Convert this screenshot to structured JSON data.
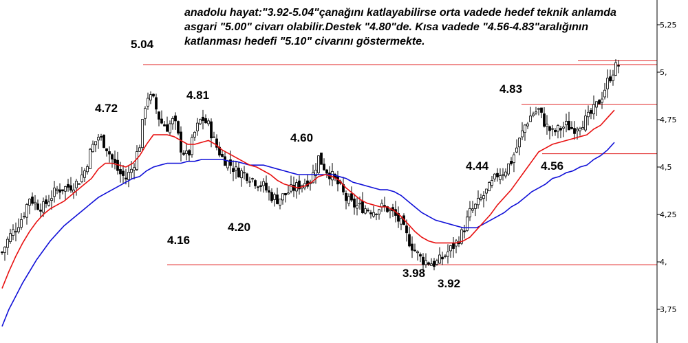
{
  "chart_data": {
    "type": "candlestick",
    "title": "",
    "commentary": "anadolu hayat:\"3.92-5.04\"çanağını katlayabilirse orta vadede hedef teknik anlamda asgari \"5.00\" civarı olabilir.Destek \"4.80\"de. Kısa vadede \"4.56-4.83\"aralığının katlanması hedefi \"5.10\" civarını göstermekte.",
    "y_axis": {
      "position": "right",
      "range": [
        3.66,
        5.45
      ],
      "ticks": [
        3.75,
        4.0,
        4.25,
        4.5,
        4.75,
        5.0,
        5.25
      ],
      "tick_labels": [
        "3,75",
        "4,",
        "4,25",
        "4,5",
        "4,75",
        "5,",
        "5,25"
      ]
    },
    "grid": false,
    "annotations": [
      {
        "text": "5.04",
        "value": 5.04
      },
      {
        "text": "4.72",
        "value": 4.72
      },
      {
        "text": "4.81",
        "value": 4.81
      },
      {
        "text": "4.16",
        "value": 4.16
      },
      {
        "text": "4.20",
        "value": 4.2
      },
      {
        "text": "4.60",
        "value": 4.6
      },
      {
        "text": "4.44",
        "value": 4.44
      },
      {
        "text": "3.98",
        "value": 3.98
      },
      {
        "text": "3.92",
        "value": 3.92
      },
      {
        "text": "4.83",
        "value": 4.83
      },
      {
        "text": "4.56",
        "value": 4.56
      }
    ],
    "horizontal_levels": [
      {
        "value": 5.04,
        "color": "#e02020"
      },
      {
        "value": 5.06,
        "color": "#e02020"
      },
      {
        "value": 4.83,
        "color": "#e02020"
      },
      {
        "value": 4.57,
        "color": "#e02020"
      },
      {
        "value": 3.985,
        "color": "#e02020"
      }
    ],
    "moving_average_short_color": "#e81010",
    "moving_average_long_color": "#1010d8",
    "candle_up_color": "#ffffff",
    "candle_down_color": "#000000",
    "close_path": [
      [
        0,
        4.05
      ],
      [
        5,
        4.13
      ],
      [
        10,
        4.18
      ],
      [
        15,
        4.24
      ],
      [
        20,
        4.34
      ],
      [
        25,
        4.3
      ],
      [
        30,
        4.29
      ],
      [
        35,
        4.34
      ],
      [
        40,
        4.38
      ],
      [
        45,
        4.39
      ],
      [
        50,
        4.4
      ],
      [
        55,
        4.42
      ],
      [
        60,
        4.48
      ],
      [
        65,
        4.6
      ],
      [
        70,
        4.66
      ],
      [
        75,
        4.62
      ],
      [
        80,
        4.54
      ],
      [
        85,
        4.47
      ],
      [
        90,
        4.44
      ],
      [
        95,
        4.5
      ],
      [
        100,
        4.62
      ],
      [
        105,
        4.88
      ],
      [
        110,
        4.85
      ],
      [
        115,
        4.74
      ],
      [
        120,
        4.71
      ],
      [
        125,
        4.75
      ],
      [
        130,
        4.6
      ],
      [
        135,
        4.55
      ],
      [
        140,
        4.68
      ],
      [
        145,
        4.76
      ],
      [
        150,
        4.72
      ],
      [
        155,
        4.62
      ],
      [
        160,
        4.55
      ],
      [
        165,
        4.52
      ],
      [
        170,
        4.48
      ],
      [
        175,
        4.47
      ],
      [
        180,
        4.45
      ],
      [
        185,
        4.42
      ],
      [
        190,
        4.4
      ],
      [
        195,
        4.35
      ],
      [
        200,
        4.33
      ],
      [
        205,
        4.35
      ],
      [
        210,
        4.38
      ],
      [
        215,
        4.4
      ],
      [
        220,
        4.42
      ],
      [
        225,
        4.44
      ],
      [
        230,
        4.55
      ],
      [
        235,
        4.49
      ],
      [
        240,
        4.45
      ],
      [
        245,
        4.4
      ],
      [
        250,
        4.33
      ],
      [
        255,
        4.3
      ],
      [
        260,
        4.29
      ],
      [
        265,
        4.28
      ],
      [
        270,
        4.27
      ],
      [
        275,
        4.29
      ],
      [
        280,
        4.28
      ],
      [
        285,
        4.25
      ],
      [
        290,
        4.2
      ],
      [
        295,
        4.12
      ],
      [
        300,
        4.06
      ],
      [
        305,
        4.01
      ],
      [
        310,
        4.0
      ],
      [
        315,
        3.99
      ],
      [
        320,
        4.02
      ],
      [
        325,
        4.06
      ],
      [
        330,
        4.1
      ],
      [
        335,
        4.16
      ],
      [
        340,
        4.26
      ],
      [
        345,
        4.3
      ],
      [
        350,
        4.35
      ],
      [
        355,
        4.4
      ],
      [
        360,
        4.46
      ],
      [
        365,
        4.48
      ],
      [
        370,
        4.53
      ],
      [
        375,
        4.62
      ],
      [
        380,
        4.72
      ],
      [
        385,
        4.78
      ],
      [
        390,
        4.8
      ],
      [
        395,
        4.72
      ],
      [
        400,
        4.68
      ],
      [
        405,
        4.7
      ],
      [
        410,
        4.72
      ],
      [
        415,
        4.7
      ],
      [
        420,
        4.73
      ],
      [
        425,
        4.75
      ],
      [
        430,
        4.8
      ],
      [
        435,
        4.86
      ],
      [
        440,
        4.95
      ],
      [
        445,
        5.02
      ],
      [
        448,
        5.04
      ]
    ],
    "short_ma_path": [
      [
        0,
        3.86
      ],
      [
        5,
        3.95
      ],
      [
        10,
        4.03
      ],
      [
        15,
        4.1
      ],
      [
        20,
        4.16
      ],
      [
        25,
        4.21
      ],
      [
        30,
        4.25
      ],
      [
        35,
        4.28
      ],
      [
        40,
        4.3
      ],
      [
        45,
        4.32
      ],
      [
        50,
        4.35
      ],
      [
        55,
        4.38
      ],
      [
        60,
        4.41
      ],
      [
        65,
        4.44
      ],
      [
        70,
        4.49
      ],
      [
        75,
        4.52
      ],
      [
        80,
        4.52
      ],
      [
        85,
        4.51
      ],
      [
        90,
        4.5
      ],
      [
        95,
        4.52
      ],
      [
        100,
        4.56
      ],
      [
        105,
        4.62
      ],
      [
        110,
        4.67
      ],
      [
        115,
        4.67
      ],
      [
        120,
        4.67
      ],
      [
        125,
        4.66
      ],
      [
        130,
        4.64
      ],
      [
        135,
        4.62
      ],
      [
        140,
        4.62
      ],
      [
        145,
        4.63
      ],
      [
        150,
        4.64
      ],
      [
        155,
        4.62
      ],
      [
        160,
        4.59
      ],
      [
        165,
        4.57
      ],
      [
        170,
        4.55
      ],
      [
        175,
        4.53
      ],
      [
        180,
        4.51
      ],
      [
        185,
        4.5
      ],
      [
        190,
        4.48
      ],
      [
        195,
        4.46
      ],
      [
        200,
        4.43
      ],
      [
        205,
        4.41
      ],
      [
        210,
        4.4
      ],
      [
        215,
        4.39
      ],
      [
        220,
        4.4
      ],
      [
        225,
        4.42
      ],
      [
        230,
        4.45
      ],
      [
        235,
        4.46
      ],
      [
        240,
        4.45
      ],
      [
        245,
        4.43
      ],
      [
        250,
        4.39
      ],
      [
        255,
        4.36
      ],
      [
        260,
        4.33
      ],
      [
        265,
        4.31
      ],
      [
        270,
        4.3
      ],
      [
        275,
        4.29
      ],
      [
        280,
        4.29
      ],
      [
        285,
        4.27
      ],
      [
        290,
        4.24
      ],
      [
        295,
        4.2
      ],
      [
        300,
        4.16
      ],
      [
        305,
        4.13
      ],
      [
        310,
        4.11
      ],
      [
        315,
        4.1
      ],
      [
        320,
        4.1
      ],
      [
        325,
        4.1
      ],
      [
        330,
        4.1
      ],
      [
        335,
        4.11
      ],
      [
        340,
        4.13
      ],
      [
        345,
        4.17
      ],
      [
        350,
        4.21
      ],
      [
        355,
        4.25
      ],
      [
        360,
        4.3
      ],
      [
        365,
        4.34
      ],
      [
        370,
        4.38
      ],
      [
        375,
        4.43
      ],
      [
        380,
        4.48
      ],
      [
        385,
        4.53
      ],
      [
        390,
        4.58
      ],
      [
        395,
        4.6
      ],
      [
        400,
        4.62
      ],
      [
        405,
        4.63
      ],
      [
        410,
        4.64
      ],
      [
        415,
        4.65
      ],
      [
        420,
        4.66
      ],
      [
        425,
        4.67
      ],
      [
        430,
        4.7
      ],
      [
        435,
        4.72
      ],
      [
        440,
        4.76
      ],
      [
        445,
        4.8
      ]
    ],
    "long_ma_path": [
      [
        0,
        3.66
      ],
      [
        5,
        3.75
      ],
      [
        10,
        3.82
      ],
      [
        15,
        3.89
      ],
      [
        20,
        3.95
      ],
      [
        25,
        4.01
      ],
      [
        30,
        4.06
      ],
      [
        35,
        4.11
      ],
      [
        40,
        4.15
      ],
      [
        45,
        4.19
      ],
      [
        50,
        4.22
      ],
      [
        55,
        4.25
      ],
      [
        60,
        4.28
      ],
      [
        65,
        4.31
      ],
      [
        70,
        4.34
      ],
      [
        75,
        4.36
      ],
      [
        80,
        4.38
      ],
      [
        85,
        4.4
      ],
      [
        90,
        4.42
      ],
      [
        95,
        4.44
      ],
      [
        100,
        4.45
      ],
      [
        105,
        4.48
      ],
      [
        110,
        4.5
      ],
      [
        115,
        4.51
      ],
      [
        120,
        4.52
      ],
      [
        125,
        4.52
      ],
      [
        130,
        4.52
      ],
      [
        135,
        4.53
      ],
      [
        140,
        4.53
      ],
      [
        145,
        4.54
      ],
      [
        150,
        4.54
      ],
      [
        155,
        4.54
      ],
      [
        160,
        4.54
      ],
      [
        165,
        4.53
      ],
      [
        170,
        4.53
      ],
      [
        175,
        4.52
      ],
      [
        180,
        4.51
      ],
      [
        185,
        4.51
      ],
      [
        190,
        4.51
      ],
      [
        195,
        4.5
      ],
      [
        200,
        4.49
      ],
      [
        205,
        4.48
      ],
      [
        210,
        4.47
      ],
      [
        215,
        4.46
      ],
      [
        220,
        4.46
      ],
      [
        225,
        4.46
      ],
      [
        230,
        4.46
      ],
      [
        235,
        4.46
      ],
      [
        240,
        4.46
      ],
      [
        245,
        4.45
      ],
      [
        250,
        4.44
      ],
      [
        255,
        4.42
      ],
      [
        260,
        4.41
      ],
      [
        265,
        4.4
      ],
      [
        270,
        4.39
      ],
      [
        275,
        4.38
      ],
      [
        280,
        4.38
      ],
      [
        285,
        4.37
      ],
      [
        290,
        4.35
      ],
      [
        295,
        4.32
      ],
      [
        300,
        4.29
      ],
      [
        305,
        4.26
      ],
      [
        310,
        4.24
      ],
      [
        315,
        4.22
      ],
      [
        320,
        4.21
      ],
      [
        325,
        4.2
      ],
      [
        330,
        4.19
      ],
      [
        335,
        4.18
      ],
      [
        340,
        4.18
      ],
      [
        345,
        4.18
      ],
      [
        350,
        4.2
      ],
      [
        355,
        4.22
      ],
      [
        360,
        4.24
      ],
      [
        365,
        4.26
      ],
      [
        370,
        4.29
      ],
      [
        375,
        4.31
      ],
      [
        380,
        4.34
      ],
      [
        385,
        4.37
      ],
      [
        390,
        4.39
      ],
      [
        395,
        4.41
      ],
      [
        400,
        4.44
      ],
      [
        405,
        4.45
      ],
      [
        410,
        4.47
      ],
      [
        415,
        4.48
      ],
      [
        420,
        4.5
      ],
      [
        425,
        4.51
      ],
      [
        430,
        4.54
      ],
      [
        435,
        4.56
      ],
      [
        440,
        4.59
      ],
      [
        445,
        4.63
      ]
    ]
  }
}
